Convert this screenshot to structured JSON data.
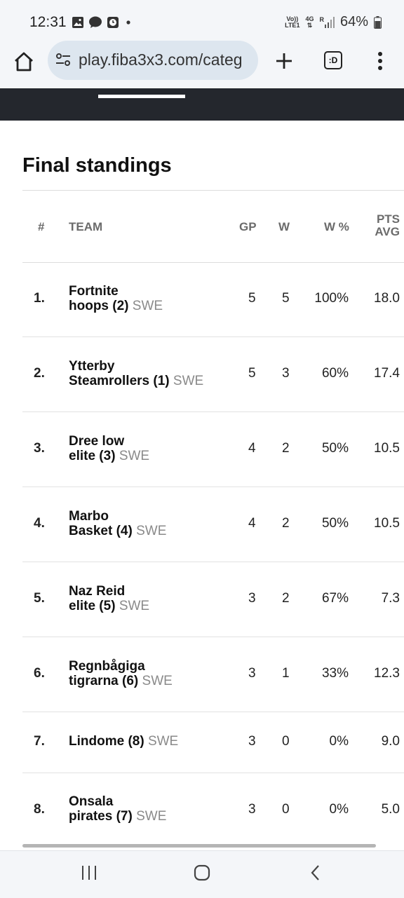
{
  "status": {
    "time": "12:31",
    "volte_line1": "Vo))",
    "volte_line2": "LTE1",
    "network": "4G",
    "roaming": "R",
    "battery": "64%"
  },
  "browser": {
    "url": "play.fiba3x3.com/categ",
    "tabs_label": ":D"
  },
  "page": {
    "title": "Final standings"
  },
  "table": {
    "headers": {
      "rank": "#",
      "team": "TEAM",
      "gp": "GP",
      "w": "W",
      "wp": "W %",
      "pts1": "PTS",
      "pts2": "AVG"
    },
    "rows": [
      {
        "rank": "1.",
        "team1": "Fortnite",
        "team2": "hoops (2)",
        "country": "SWE",
        "gp": "5",
        "w": "5",
        "wp": "100%",
        "pts": "18.0"
      },
      {
        "rank": "2.",
        "team1": "Ytterby",
        "team2": "Steamrollers (1)",
        "country": "SWE",
        "gp": "5",
        "w": "3",
        "wp": "60%",
        "pts": "17.4"
      },
      {
        "rank": "3.",
        "team1": "Dree low",
        "team2": "elite (3)",
        "country": "SWE",
        "gp": "4",
        "w": "2",
        "wp": "50%",
        "pts": "10.5"
      },
      {
        "rank": "4.",
        "team1": "Marbo",
        "team2": "Basket (4)",
        "country": "SWE",
        "gp": "4",
        "w": "2",
        "wp": "50%",
        "pts": "10.5"
      },
      {
        "rank": "5.",
        "team1": "Naz Reid",
        "team2": "elite (5)",
        "country": "SWE",
        "gp": "3",
        "w": "2",
        "wp": "67%",
        "pts": "7.3"
      },
      {
        "rank": "6.",
        "team1": "Regnbågiga",
        "team2": "tigrarna (6)",
        "country": "SWE",
        "gp": "3",
        "w": "1",
        "wp": "33%",
        "pts": "12.3"
      },
      {
        "rank": "7.",
        "team1": "",
        "team2": "Lindome (8)",
        "country": "SWE",
        "gp": "3",
        "w": "0",
        "wp": "0%",
        "pts": "9.0"
      },
      {
        "rank": "8.",
        "team1": "Onsala",
        "team2": "pirates (7)",
        "country": "SWE",
        "gp": "3",
        "w": "0",
        "wp": "0%",
        "pts": "5.0"
      }
    ]
  },
  "icons": {
    "home": "home-icon",
    "tune": "page-info-icon",
    "new_tab": "plus-icon",
    "menu": "more-vert-icon",
    "recents": "recent-apps-icon",
    "home_nav": "home-nav-icon",
    "back": "back-icon"
  }
}
